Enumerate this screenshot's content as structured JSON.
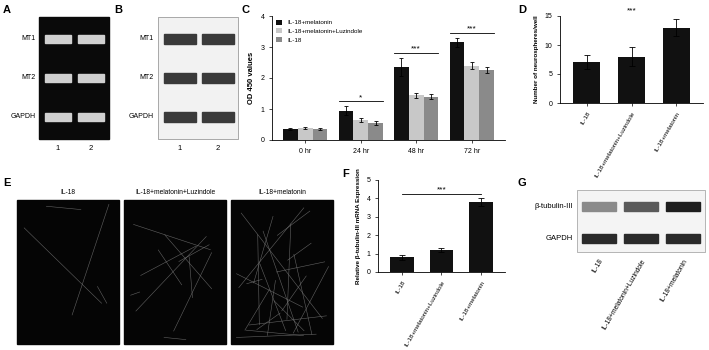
{
  "chart_data": [
    {
      "type": "bar",
      "title": "C",
      "y_label": "OD 450 values",
      "categories": [
        "0 hr",
        "24 hr",
        "48 hr",
        "72 hr"
      ],
      "series": [
        {
          "name": "IL-18+melatonin",
          "color": "#111111",
          "values": [
            0.35,
            0.95,
            2.35,
            3.15
          ],
          "errors": [
            0.03,
            0.15,
            0.3,
            0.15
          ]
        },
        {
          "name": "IL-18+melatonin+Luzindole",
          "color": "#c8c8c8",
          "values": [
            0.38,
            0.65,
            1.45,
            2.4
          ],
          "errors": [
            0.03,
            0.06,
            0.08,
            0.12
          ]
        },
        {
          "name": "IL-18",
          "color": "#8a8a8a",
          "values": [
            0.35,
            0.55,
            1.4,
            2.25
          ],
          "errors": [
            0.03,
            0.05,
            0.07,
            0.1
          ]
        }
      ],
      "ylim": [
        0,
        4
      ],
      "yticks": [
        0,
        1,
        2,
        3,
        4
      ],
      "legend": "upper left",
      "annotations": [
        {
          "category": "24 hr",
          "label": "*"
        },
        {
          "category": "48 hr",
          "label": "***"
        },
        {
          "category": "72 hr",
          "label": "***"
        }
      ]
    },
    {
      "type": "bar",
      "title": "D",
      "y_label": "Number of neurospheres/well",
      "categories": [
        "IL-18",
        "IL-18+melatonin+Luzindole",
        "IL-18+melatonin"
      ],
      "values": [
        7,
        8,
        13
      ],
      "errors": [
        1.2,
        1.6,
        1.5
      ],
      "color": "#111111",
      "ylim": [
        0,
        15
      ],
      "yticks": [
        0,
        5,
        10,
        15
      ],
      "annotations": [
        {
          "between": [
            "IL-18",
            "IL-18+melatonin"
          ],
          "label": "***"
        }
      ]
    },
    {
      "type": "bar",
      "title": "F",
      "y_label": "Relative β-tubulin-III mRNA Expression",
      "categories": [
        "IL-18",
        "IL-18+melatonin+Luzindole",
        "IL-18+melatonin"
      ],
      "values": [
        0.8,
        1.2,
        3.8
      ],
      "errors": [
        0.15,
        0.1,
        0.2
      ],
      "color": "#111111",
      "ylim": [
        0,
        5
      ],
      "yticks": [
        0,
        1,
        2,
        3,
        4,
        5
      ],
      "annotations": [
        {
          "between": [
            "IL-18",
            "IL-18+melatonin"
          ],
          "label": "***"
        }
      ]
    }
  ],
  "gel": {
    "label": "A",
    "rows": [
      "MT1",
      "MT2",
      "GAPDH"
    ],
    "lanes": [
      "1",
      "2"
    ]
  },
  "western_blot": {
    "label": "B",
    "rows": [
      "MT1",
      "MT2",
      "GAPDH"
    ],
    "lanes": [
      "1",
      "2"
    ]
  },
  "images": {
    "label": "E",
    "captions": [
      "IL-18",
      "IL-18+melatonin+Luzindole",
      "IL-18+melatonin"
    ]
  },
  "western_blot_2": {
    "label": "G",
    "rows": [
      "β-tubulin-III",
      "GAPDH"
    ],
    "lanes": [
      "IL-18",
      "IL-18+melatonin+Luzindole",
      "IL-18+melatonin"
    ]
  }
}
